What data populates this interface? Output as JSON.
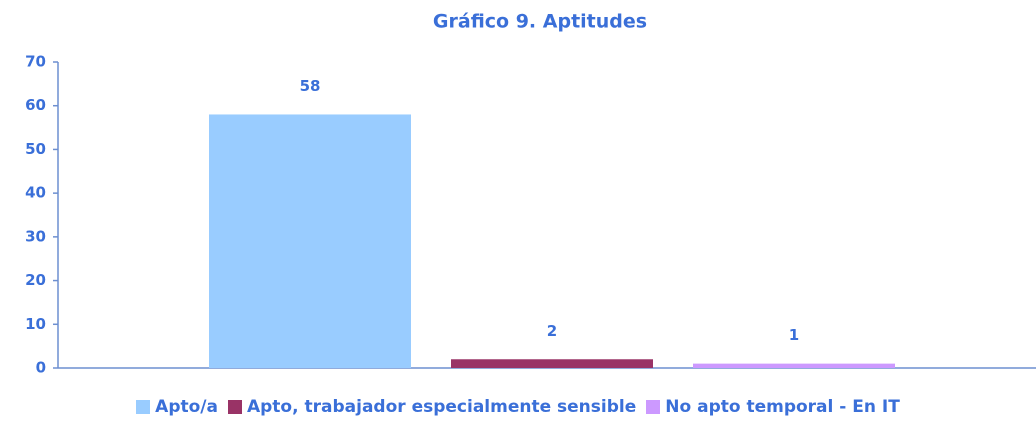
{
  "chart_data": {
    "type": "bar",
    "title": "Gráfico 9. Aptitudes",
    "categories": [
      null
    ],
    "series": [
      {
        "name": "Apto/a",
        "color": "#99ccff",
        "values": [
          58
        ]
      },
      {
        "name": "Apto, trabajador especialmente sensible",
        "color": "#993366",
        "values": [
          2
        ]
      },
      {
        "name": "No apto temporal - En IT",
        "color": "#cc99ff",
        "values": [
          1
        ]
      }
    ],
    "ylim": [
      0,
      70
    ],
    "yticks": [
      0,
      10,
      20,
      30,
      40,
      50,
      60,
      70
    ],
    "grid": false,
    "legend": "bottom"
  }
}
